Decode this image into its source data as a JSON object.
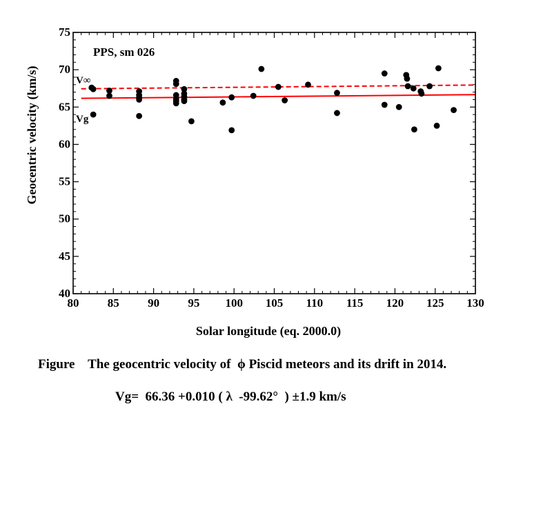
{
  "chart_data": {
    "type": "scatter",
    "title": "",
    "xlabel": "Solar longitude (eq. 2000.0)",
    "ylabel": "Geocentric velocity (km/s)",
    "xlim": [
      80,
      130
    ],
    "ylim": [
      40,
      75
    ],
    "xticks": [
      80,
      85,
      90,
      95,
      100,
      105,
      110,
      115,
      120,
      125,
      130
    ],
    "yticks": [
      40,
      45,
      50,
      55,
      60,
      65,
      70,
      75
    ],
    "grid": false,
    "annotation": "PPS, sm 026",
    "series": [
      {
        "name": "Vg",
        "label": "Vg",
        "kind": "points",
        "x": [
          82.3,
          82.5,
          82.5,
          84.5,
          84.5,
          88.2,
          88.2,
          88.2,
          88.2,
          88.2,
          92.8,
          92.8,
          92.8,
          92.8,
          92.8,
          92.8,
          93.8,
          93.8,
          93.8,
          93.8,
          93.8,
          94.7,
          98.6,
          99.7,
          99.7,
          102.4,
          103.4,
          105.5,
          106.3,
          109.2,
          112.8,
          112.8,
          118.7,
          118.7,
          120.5,
          121.4,
          121.5,
          121.6,
          122.3,
          122.4,
          123.2,
          123.3,
          124.3,
          125.2,
          125.4,
          127.3
        ],
        "y": [
          67.6,
          67.4,
          64.0,
          67.2,
          66.5,
          67.1,
          66.6,
          66.3,
          66.0,
          63.8,
          68.5,
          68.1,
          66.6,
          66.1,
          65.8,
          65.5,
          67.4,
          66.8,
          66.4,
          65.8,
          66.0,
          63.1,
          65.6,
          66.3,
          61.9,
          66.5,
          70.1,
          67.7,
          65.9,
          68.0,
          66.9,
          64.2,
          69.5,
          65.3,
          65.0,
          69.3,
          68.8,
          67.8,
          67.5,
          62.0,
          67.1,
          66.8,
          67.8,
          62.5,
          70.2,
          64.6
        ]
      },
      {
        "name": "V∞",
        "label": "V∞",
        "kind": "dashed-line",
        "color": "#ff0000",
        "x": [
          81,
          130
        ],
        "y": [
          67.45,
          67.95
        ]
      },
      {
        "name": "Vg fit",
        "label": "",
        "kind": "solid-line",
        "color": "#ff0000",
        "x": [
          81,
          130
        ],
        "y": [
          66.17,
          66.66
        ]
      }
    ]
  },
  "caption": {
    "line1": "Figure    The geocentric velocity of  ϕ Piscid meteors and its drift in 2014.",
    "line2": "Vg=  66.36 +0.010 ( λ  -99.62°  ) ±1.9 km/s"
  }
}
